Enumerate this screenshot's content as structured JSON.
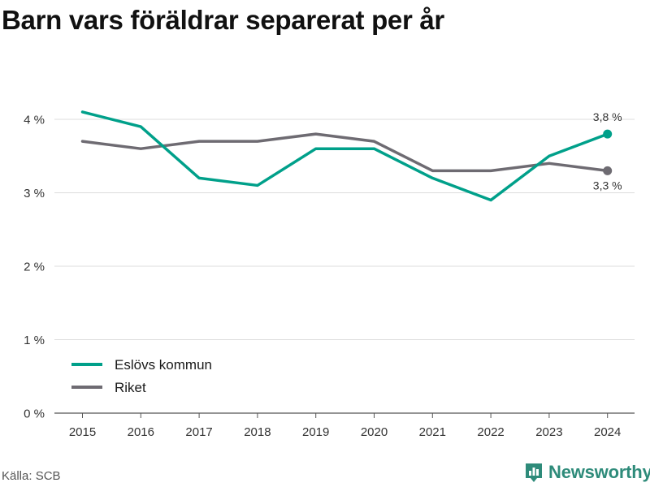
{
  "title": "Barn vars föräldrar separerat per år",
  "source": "Källa: SCB",
  "brand": {
    "name": "Newsworthy",
    "icon": "bar-chart-logo-icon",
    "color": "#2e8b7a"
  },
  "chart_data": {
    "type": "line",
    "title": "Barn vars föräldrar separerat per år",
    "x": [
      2015,
      2016,
      2017,
      2018,
      2019,
      2020,
      2021,
      2022,
      2023,
      2024
    ],
    "x_tick_labels": [
      "2015",
      "2016",
      "2017",
      "2018",
      "2019",
      "2020",
      "2021",
      "2022",
      "2023",
      "2024"
    ],
    "y_ticks": [
      0,
      1,
      2,
      3,
      4
    ],
    "y_tick_labels": [
      "0 %",
      "1 %",
      "2 %",
      "3 %",
      "4 %"
    ],
    "ylim": [
      0,
      4.4
    ],
    "grid": true,
    "legend_position": "bottom-left",
    "series": [
      {
        "name": "Eslövs kommun",
        "color": "#00a08a",
        "values": [
          4.1,
          3.9,
          3.2,
          3.1,
          3.6,
          3.6,
          3.2,
          2.9,
          3.5,
          3.8
        ],
        "end_label": "3,8 %",
        "end_label_position": "above"
      },
      {
        "name": "Riket",
        "color": "#6e6b72",
        "values": [
          3.7,
          3.6,
          3.7,
          3.7,
          3.8,
          3.7,
          3.3,
          3.3,
          3.4,
          3.3
        ],
        "end_label": "3,3 %",
        "end_label_position": "below"
      }
    ]
  }
}
